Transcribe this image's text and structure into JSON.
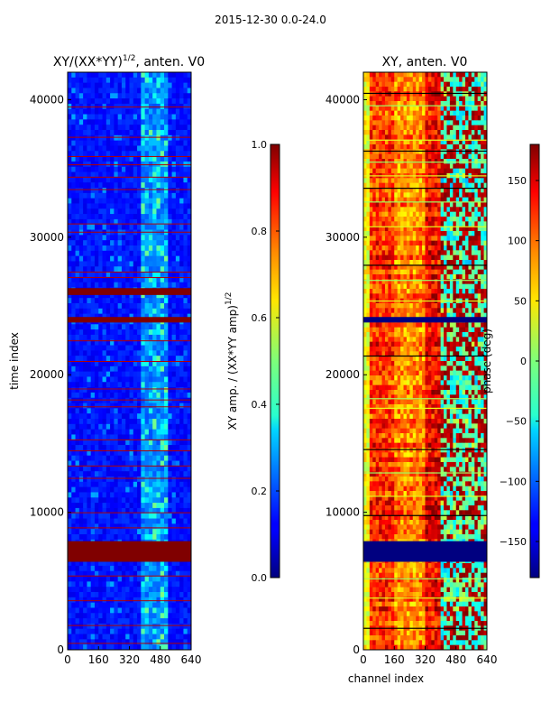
{
  "suptitle": "2015-12-30 0.0-24.0",
  "chart_data": [
    {
      "type": "heatmap",
      "title": "XY/(XX*YY)^{1/2}, anten. V0",
      "title_main": "XY/(XX*YY)",
      "title_exp": "1/2",
      "title_tail": ", anten. V0",
      "xlabel": "",
      "ylabel": "time index",
      "xlim": [
        0,
        640
      ],
      "ylim": [
        0,
        42000
      ],
      "xticks": [
        0,
        160,
        320,
        480,
        640
      ],
      "yticks": [
        0,
        10000,
        20000,
        30000,
        40000
      ],
      "colormap": "jet",
      "colorbar": {
        "label": "XY amp. / (XX*YY amp)^{1/2}",
        "label_main": "XY amp. / (XX*YY amp)",
        "label_exp": "1/2",
        "range": [
          0.0,
          1.0
        ],
        "ticks": [
          0.0,
          0.2,
          0.4,
          0.6,
          0.8,
          1.0
        ],
        "tick_labels": [
          "0.0",
          "0.2",
          "0.4",
          "0.6",
          "0.8",
          "1.0"
        ]
      },
      "saturated_rows": [
        {
          "from": 6400,
          "to": 7900,
          "value": 1.0
        },
        {
          "from": 23800,
          "to": 24200,
          "value": 1.0
        },
        {
          "from": 25800,
          "to": 26300,
          "value": 1.0
        }
      ],
      "bright_region": {
        "channel_from": 380,
        "channel_to": 520,
        "value_range": [
          0.2,
          0.5
        ]
      }
    },
    {
      "type": "heatmap",
      "title": "XY, anten. V0",
      "xlabel": "channel index",
      "ylabel": "",
      "xlim": [
        0,
        640
      ],
      "ylim": [
        0,
        42000
      ],
      "xticks": [
        0,
        160,
        320,
        480,
        640
      ],
      "yticks": [
        0,
        10000,
        20000,
        30000,
        40000
      ],
      "colormap": "jet",
      "colorbar": {
        "label": "phase (deg)",
        "range": [
          -180,
          180
        ],
        "ticks": [
          -150,
          -100,
          -50,
          0,
          50,
          100,
          150
        ],
        "tick_labels": [
          "−150",
          "−100",
          "−50",
          "0",
          "50",
          "100",
          "150"
        ]
      },
      "blocked_rows": [
        {
          "from": 6400,
          "to": 7900,
          "value": -180
        },
        {
          "from": 23800,
          "to": 24200,
          "value": -180
        }
      ],
      "phase_bands": [
        {
          "channel_from": 0,
          "channel_to": 160,
          "value": 120
        },
        {
          "channel_from": 160,
          "channel_to": 320,
          "value": 90
        },
        {
          "channel_from": 320,
          "channel_to": 400,
          "value": 140
        },
        {
          "channel_from": 400,
          "channel_to": 640,
          "value": -20
        }
      ]
    }
  ]
}
